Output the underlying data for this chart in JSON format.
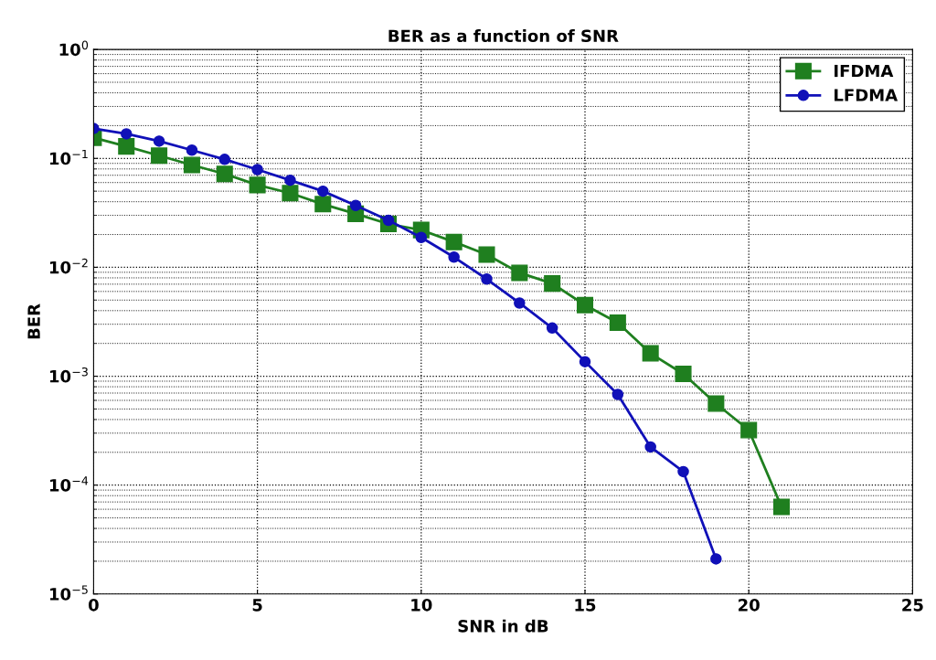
{
  "chart_data": {
    "type": "line",
    "title": "BER as a function of SNR",
    "xlabel": "SNR in dB",
    "ylabel": "BER",
    "series": [
      {
        "name": "IFDMA",
        "color": "#1f7f1f",
        "marker": "square",
        "x": [
          0,
          1,
          2,
          3,
          4,
          5,
          6,
          7,
          8,
          9,
          10,
          11,
          12,
          13,
          14,
          15,
          16,
          17,
          18,
          19,
          20,
          21
        ],
        "values": [
          0.155,
          0.129,
          0.106,
          0.087,
          0.072,
          0.057,
          0.048,
          0.038,
          0.031,
          0.025,
          0.022,
          0.0171,
          0.0131,
          0.0089,
          0.0071,
          0.0045,
          0.0031,
          0.00162,
          0.00105,
          0.00056,
          0.00032,
          6.3e-05
        ]
      },
      {
        "name": "LFDMA",
        "color": "#1010b8",
        "marker": "circle",
        "x": [
          0,
          1,
          2,
          3,
          4,
          5,
          6,
          7,
          8,
          9,
          10,
          11,
          12,
          13,
          14,
          15,
          16,
          17,
          18,
          19
        ],
        "values": [
          0.188,
          0.168,
          0.144,
          0.119,
          0.098,
          0.079,
          0.063,
          0.05,
          0.037,
          0.027,
          0.0188,
          0.0124,
          0.0078,
          0.0047,
          0.00277,
          0.00136,
          0.00068,
          0.000224,
          0.000133,
          2.1e-05
        ]
      }
    ],
    "log": "y",
    "xlim": [
      0,
      25
    ],
    "xticks": [
      0,
      5,
      10,
      15,
      20,
      25
    ],
    "ylim": [
      1e-05,
      1
    ],
    "yticks": [
      {
        "value": 1e-05,
        "label": "10$^{−5}$"
      },
      {
        "value": 0.0001,
        "label": "10$^{−4}$"
      },
      {
        "value": 0.001,
        "label": "10$^{−3}$"
      },
      {
        "value": 0.01,
        "label": "10$^{−2}$"
      },
      {
        "value": 0.1,
        "label": "10$^{−1}$"
      },
      {
        "value": 1,
        "label": "10$^{0}$"
      }
    ],
    "grid": true,
    "legend": "top right",
    "line_style": "solid"
  }
}
